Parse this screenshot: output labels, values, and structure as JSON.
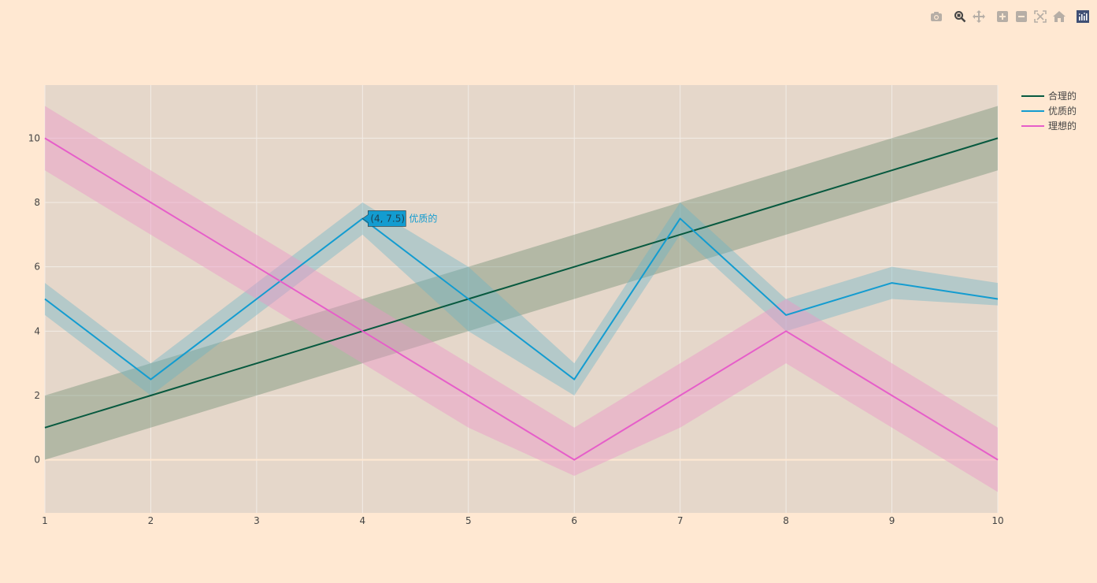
{
  "toolbar": {
    "buttons": [
      {
        "name": "camera-icon",
        "active": false
      },
      {
        "name": "zoom-icon",
        "active": true
      },
      {
        "name": "pan-icon",
        "active": false
      },
      {
        "name": "zoom-in-icon",
        "active": false
      },
      {
        "name": "zoom-out-icon",
        "active": false
      },
      {
        "name": "autoscale-icon",
        "active": false
      },
      {
        "name": "home-icon",
        "active": false
      },
      {
        "name": "plotly-logo-icon",
        "active": false
      }
    ]
  },
  "colors": {
    "page_bg": "#ffe8d2",
    "plot_bg": "#e5d7ca",
    "grid": "#f2ece6",
    "toolbar_icon": "#b6aea6",
    "toolbar_active": "#444444",
    "tooltip_text": "#1f3f4f"
  },
  "chart_data": {
    "type": "line",
    "x": [
      1,
      2,
      3,
      4,
      5,
      6,
      7,
      8,
      9,
      10
    ],
    "xlim": [
      1,
      10
    ],
    "ylim": [
      -1.65,
      11.65
    ],
    "xticks": [
      1,
      2,
      3,
      4,
      5,
      6,
      7,
      8,
      9,
      10
    ],
    "yticks": [
      0,
      2,
      4,
      6,
      8,
      10
    ],
    "grid": true,
    "legend_position": "top-right",
    "series": [
      {
        "name": "合理的",
        "color": "#07593f",
        "band_color": "rgba(80,120,90,0.33)",
        "values": [
          1,
          2,
          3,
          4,
          5,
          6,
          7,
          8,
          9,
          10
        ],
        "upper": [
          2,
          3,
          4,
          5,
          6,
          7,
          8,
          9,
          10,
          11
        ],
        "lower": [
          0,
          1,
          2,
          3,
          4,
          5,
          6,
          7,
          8,
          9
        ]
      },
      {
        "name": "优质的",
        "color": "#139cd0",
        "band_color": "rgba(100,180,200,0.38)",
        "values": [
          5,
          2.5,
          5,
          7.5,
          5,
          2.5,
          7.5,
          4.5,
          5.5,
          5
        ],
        "upper": [
          5.5,
          3,
          5.5,
          8,
          6,
          3,
          8,
          5,
          6,
          5.5
        ],
        "lower": [
          4.5,
          2,
          4.5,
          7,
          4,
          2,
          7,
          4,
          5,
          4.8
        ]
      },
      {
        "name": "理想的",
        "color": "#e65ec9",
        "band_color": "rgba(235,150,200,0.45)",
        "values": [
          10,
          8,
          6,
          4,
          2,
          0,
          2,
          4,
          2,
          0
        ],
        "upper": [
          11,
          9,
          7,
          5,
          3,
          1,
          3,
          5,
          3,
          1
        ],
        "lower": [
          9,
          7,
          5,
          3,
          1,
          -0.5,
          1,
          3,
          1,
          -1
        ]
      }
    ],
    "tooltip": {
      "label": "(4, 7.5)",
      "series_name": "优质的",
      "x": 4,
      "y": 7.5,
      "bg": "#139cd0"
    }
  }
}
